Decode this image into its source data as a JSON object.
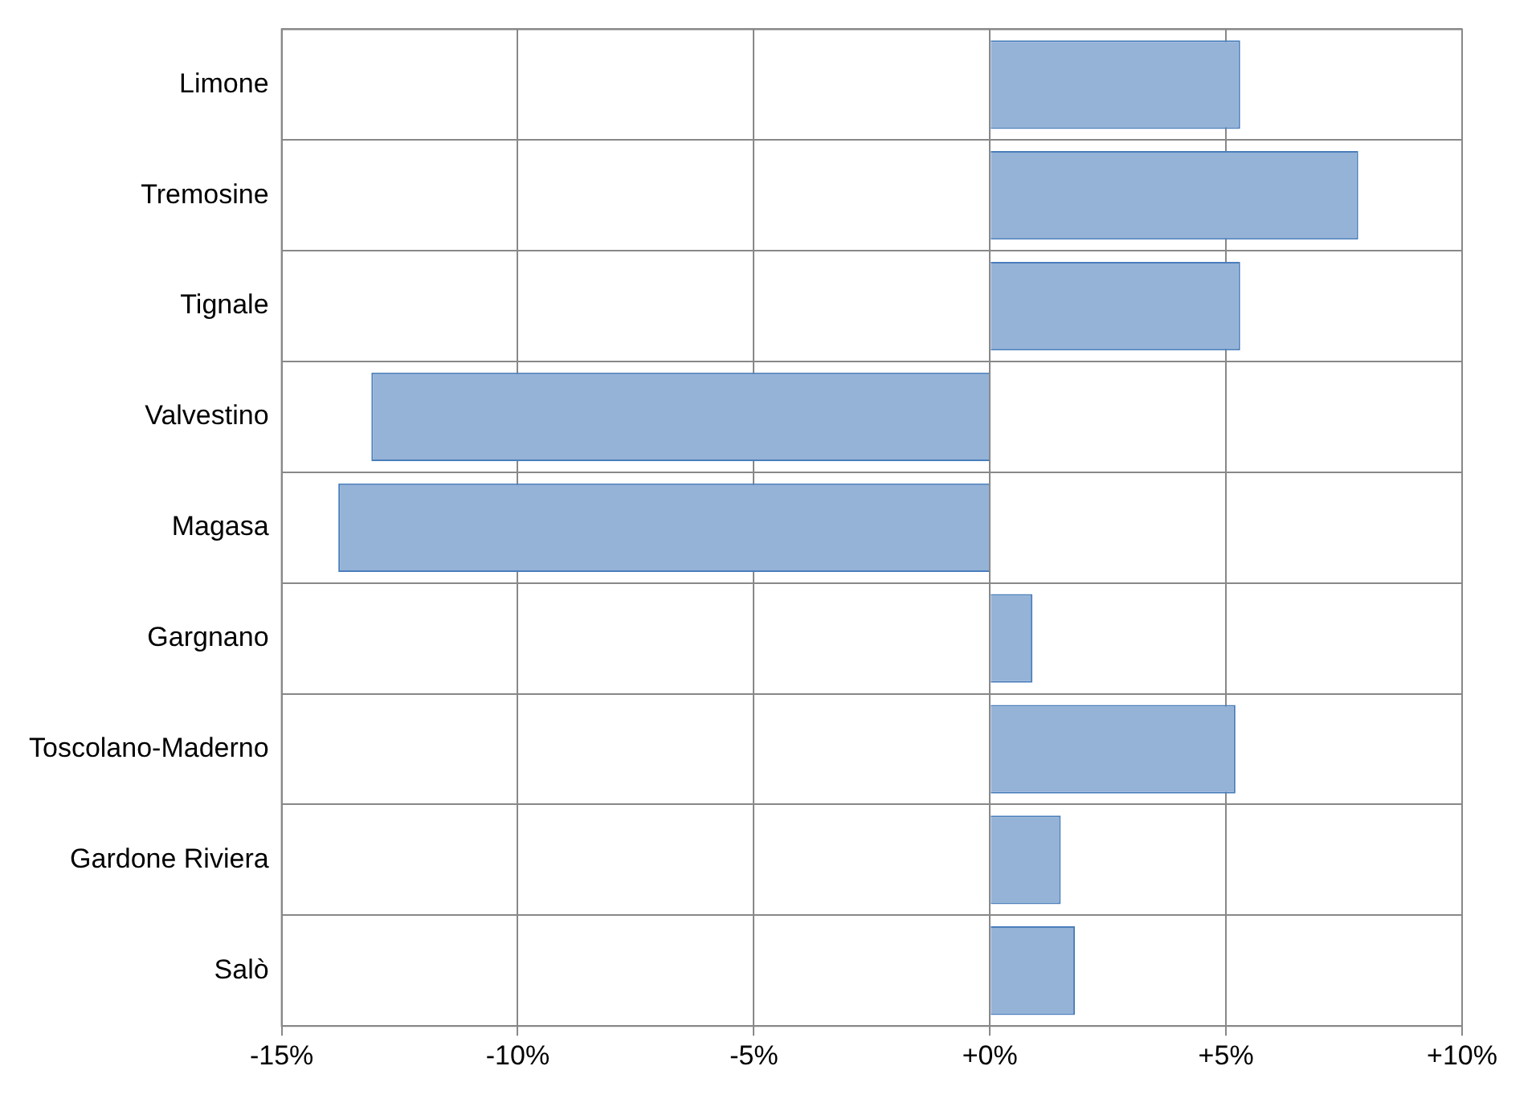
{
  "chart_data": {
    "type": "bar",
    "orientation": "horizontal",
    "categories": [
      "Limone",
      "Tremosine",
      "Tignale",
      "Valvestino",
      "Magasa",
      "Gargnano",
      "Toscolano-Maderno",
      "Gardone Riviera",
      "Salò"
    ],
    "values": [
      5.3,
      7.8,
      5.3,
      -13.1,
      -13.8,
      0.9,
      5.2,
      1.5,
      1.8
    ],
    "color": "#95b3d7",
    "xlim": [
      -15,
      10
    ],
    "xticks": [
      {
        "value": -15,
        "label": "-15%"
      },
      {
        "value": -10,
        "label": "-10%"
      },
      {
        "value": -5,
        "label": "-5%"
      },
      {
        "value": 0,
        "label": "+0%"
      },
      {
        "value": 5,
        "label": "+5%"
      },
      {
        "value": 10,
        "label": "+10%"
      }
    ],
    "grid": true,
    "legend": false
  }
}
